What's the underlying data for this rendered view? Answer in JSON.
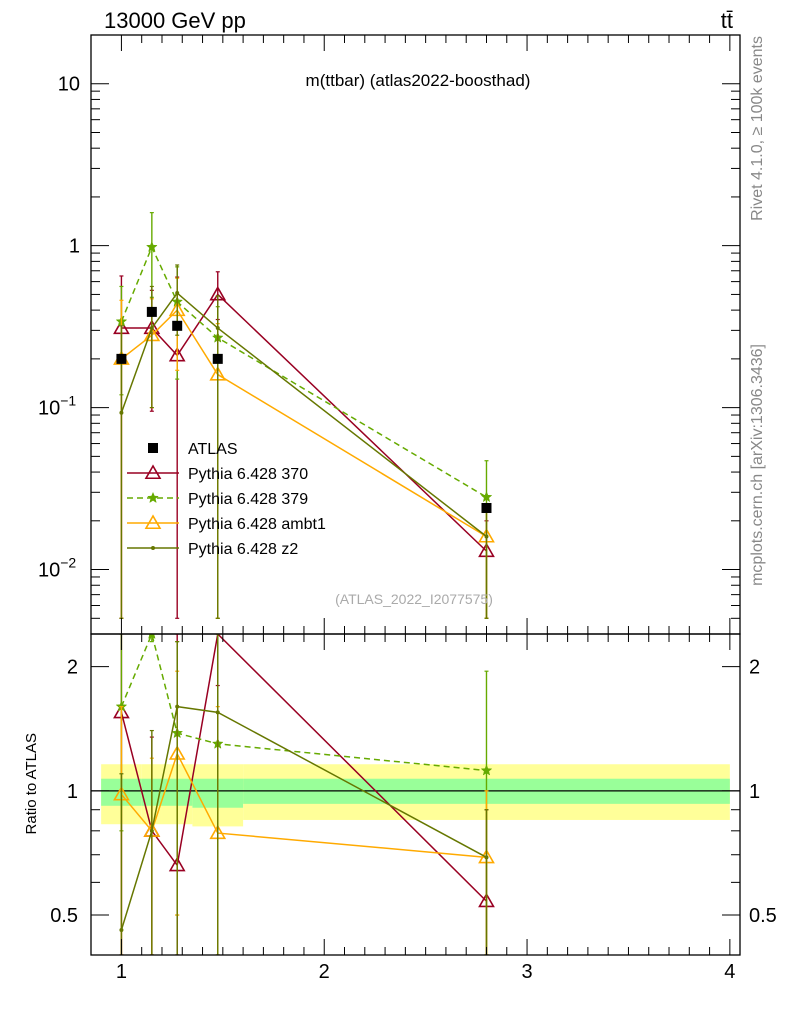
{
  "header": {
    "left": "13000 GeV pp",
    "right": "tt̄"
  },
  "side_labels": {
    "rivet": "Rivet 4.1.0, ≥ 100k events",
    "mcplots": "mcplots.cern.ch [arXiv:1306.3436]"
  },
  "chart_data": {
    "type": "scatter",
    "title": "m(ttbar) (atlas2022-boosthad)",
    "watermark": "(ATLAS_2022_I2077575)",
    "xlabel": "",
    "ylabel_main": "",
    "ylabel_ratio": "Ratio to ATLAS",
    "xlim": [
      0.85,
      4.05
    ],
    "ylim_main": [
      0.004,
      20
    ],
    "ylim_ratio": [
      0.4,
      2.4
    ],
    "yscale_main": "log",
    "yscale_ratio": "log",
    "x_ticks": [
      1,
      2,
      3,
      4
    ],
    "x_tick_labels": [
      "1",
      "2",
      "3",
      "4"
    ],
    "y_ticks_main": [
      0.01,
      0.1,
      1,
      10
    ],
    "y_tick_labels_main": [
      {
        "base": "10",
        "exp": "−2"
      },
      {
        "base": "10",
        "exp": "−1"
      },
      {
        "base": "1",
        "exp": ""
      },
      {
        "base": "10",
        "exp": ""
      }
    ],
    "y_ticks_ratio": [
      0.5,
      1,
      2
    ],
    "y_tick_labels_ratio": [
      "0.5",
      "1",
      "2"
    ],
    "legend_position": "lower-left",
    "reference": {
      "name": "ATLAS",
      "color": "#000000",
      "x": [
        1.0,
        1.15,
        1.275,
        1.475,
        2.8
      ],
      "y": [
        0.2,
        0.39,
        0.32,
        0.2,
        0.024
      ],
      "bins": [
        [
          0.9,
          1.1
        ],
        [
          1.1,
          1.2
        ],
        [
          1.2,
          1.35
        ],
        [
          1.35,
          1.6
        ],
        [
          1.6,
          4.0
        ]
      ],
      "band_inner": [
        [
          0.92,
          1.07
        ],
        [
          0.92,
          1.07
        ],
        [
          0.92,
          1.07
        ],
        [
          0.91,
          1.07
        ],
        [
          0.93,
          1.07
        ]
      ],
      "band_outer": [
        [
          0.83,
          1.16
        ],
        [
          0.83,
          1.16
        ],
        [
          0.83,
          1.16
        ],
        [
          0.82,
          1.16
        ],
        [
          0.85,
          1.16
        ]
      ],
      "band_inner_color": "#99ff99",
      "band_outer_color": "#ffff99"
    },
    "series": [
      {
        "name": "Pythia 6.428 370",
        "color": "#990022",
        "marker": "triangle-open",
        "dash": "",
        "x": [
          1.0,
          1.15,
          1.275,
          1.475,
          2.8
        ],
        "y": [
          0.31,
          0.31,
          0.21,
          0.5,
          0.013
        ],
        "err_lo": [
          0.005,
          0.095,
          0.005,
          0.35,
          0.005
        ],
        "err_hi": [
          0.65,
          0.53,
          0.64,
          0.69,
          0.02
        ],
        "ratio": [
          1.55,
          0.8,
          0.66,
          2.5,
          0.54
        ],
        "ratio_lo": [
          0.35,
          0.35,
          0.35,
          1.8,
          0.35
        ],
        "ratio_hi": [
          2.5,
          1.35,
          2.5,
          2.5,
          0.9
        ]
      },
      {
        "name": "Pythia 6.428 379",
        "color": "#66aa00",
        "marker": "star",
        "dash": "6,4",
        "x": [
          1.0,
          1.15,
          1.275,
          1.475,
          2.8
        ],
        "y": [
          0.34,
          0.98,
          0.45,
          0.27,
          0.028
        ],
        "err_lo": [
          0.12,
          0.48,
          0.15,
          0.005,
          0.005
        ],
        "err_hi": [
          0.56,
          1.6,
          0.74,
          0.42,
          0.047
        ],
        "ratio": [
          1.6,
          2.4,
          1.38,
          1.3,
          1.12
        ],
        "ratio_lo": [
          0.8,
          2.3,
          0.5,
          0.35,
          0.35
        ],
        "ratio_hi": [
          2.4,
          2.4,
          2.3,
          2.4,
          1.95
        ]
      },
      {
        "name": "Pythia 6.428 ambt1",
        "color": "#ffaa00",
        "marker": "triangle-open",
        "dash": "",
        "x": [
          1.0,
          1.15,
          1.275,
          1.475,
          2.8
        ],
        "y": [
          0.2,
          0.28,
          0.4,
          0.16,
          0.016
        ],
        "err_lo": [
          0.005,
          0.1,
          0.17,
          0.005,
          0.005
        ],
        "err_hi": [
          0.46,
          0.47,
          0.63,
          0.33,
          0.024
        ],
        "ratio": [
          0.98,
          0.8,
          1.23,
          0.79,
          0.69
        ],
        "ratio_lo": [
          0.35,
          0.35,
          0.5,
          0.35,
          0.35
        ],
        "ratio_hi": [
          1.6,
          1.2,
          1.95,
          1.6,
          1.0
        ]
      },
      {
        "name": "Pythia 6.428 z2",
        "color": "#667700",
        "marker": "dot",
        "dash": "",
        "x": [
          1.0,
          1.15,
          1.275,
          1.475,
          2.8
        ],
        "y": [
          0.093,
          0.31,
          0.51,
          0.31,
          0.016
        ],
        "err_lo": [
          0.005,
          0.1,
          0.28,
          0.005,
          0.005
        ],
        "err_hi": [
          0.32,
          0.56,
          0.76,
          0.49,
          0.024
        ],
        "ratio": [
          0.46,
          0.8,
          1.6,
          1.55,
          0.69
        ],
        "ratio_lo": [
          0.35,
          0.35,
          0.35,
          0.35,
          0.35
        ],
        "ratio_hi": [
          1.1,
          1.4,
          2.3,
          2.4,
          0.9
        ]
      }
    ]
  }
}
